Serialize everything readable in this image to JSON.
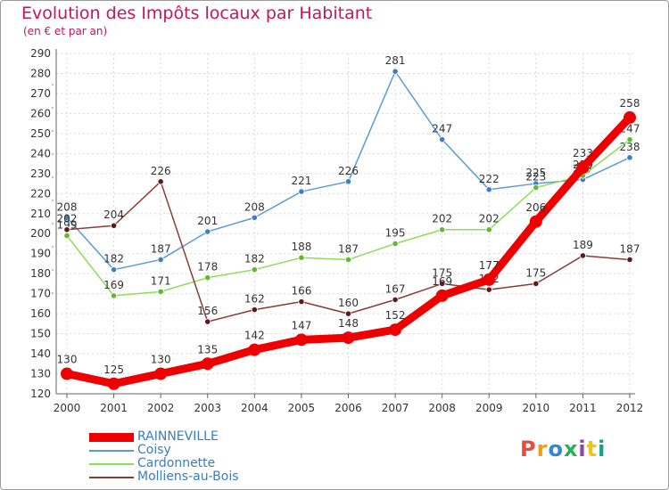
{
  "header": {
    "title": "Evolution des Impôts locaux par Habitant",
    "subtitle": "(en € et par an)"
  },
  "logo": {
    "text": "Proxiti",
    "colors": [
      "#e74c3c",
      "#f39c12",
      "#2e86de",
      "#27ae60",
      "#8e44ad",
      "#f1c40f",
      "#16a085"
    ]
  },
  "chart_data": {
    "type": "line",
    "title": "Evolution des Impôts locaux par Habitant",
    "subtitle": "(en € et par an)",
    "xlabel": "",
    "ylabel": "",
    "categories": [
      "2000",
      "2001",
      "2002",
      "2003",
      "2004",
      "2005",
      "2006",
      "2007",
      "2008",
      "2009",
      "2010",
      "2011",
      "2012"
    ],
    "ylim": [
      120,
      290
    ],
    "yticks": [
      120,
      130,
      140,
      150,
      160,
      170,
      180,
      190,
      200,
      210,
      220,
      230,
      240,
      250,
      260,
      270,
      280,
      290
    ],
    "grid": true,
    "legend_position": "bottom-left",
    "series": [
      {
        "name": "Coisy",
        "color": "#5b9bd5",
        "marker": "#3f7fc0",
        "values": [
          208,
          182,
          187,
          201,
          208,
          221,
          226,
          281,
          247,
          222,
          225,
          227,
          238
        ],
        "labels": [
          "208",
          "182",
          "187",
          "201",
          "208",
          "221",
          "226",
          "281",
          "247",
          "222",
          "225",
          "227",
          "238"
        ]
      },
      {
        "name": "Cardonnette",
        "color": "#8fdc5a",
        "marker": "#5fb82f",
        "values": [
          199,
          169,
          171,
          178,
          182,
          188,
          187,
          195,
          202,
          202,
          223,
          229,
          247
        ],
        "labels": [
          "199",
          "169",
          "171",
          "178",
          "182",
          "188",
          "187",
          "195",
          "202",
          "202",
          "223",
          "229",
          "247"
        ]
      },
      {
        "name": "Molliens-au-Bois",
        "color": "#8b3a3a",
        "marker": "#5c1a1a",
        "values": [
          202,
          204,
          226,
          156,
          162,
          166,
          160,
          167,
          175,
          172,
          175,
          189,
          187
        ],
        "labels": [
          "202",
          "204",
          "226",
          "156",
          "162",
          "166",
          "160",
          "167",
          "175",
          "172",
          "175",
          "189",
          "187"
        ]
      },
      {
        "name": "RAINNEVILLE",
        "color": "#ee0000",
        "marker": "#ee0000",
        "values": [
          130,
          125,
          130,
          135,
          142,
          147,
          148,
          152,
          169,
          177,
          206,
          233,
          258
        ],
        "labels": [
          "130",
          "125",
          "130",
          "135",
          "142",
          "147",
          "148",
          "152",
          "169",
          "177",
          "206",
          "233",
          "258"
        ]
      }
    ],
    "legend": [
      "RAINNEVILLE",
      "Coisy",
      "Cardonnette",
      "Molliens-au-Bois"
    ]
  }
}
